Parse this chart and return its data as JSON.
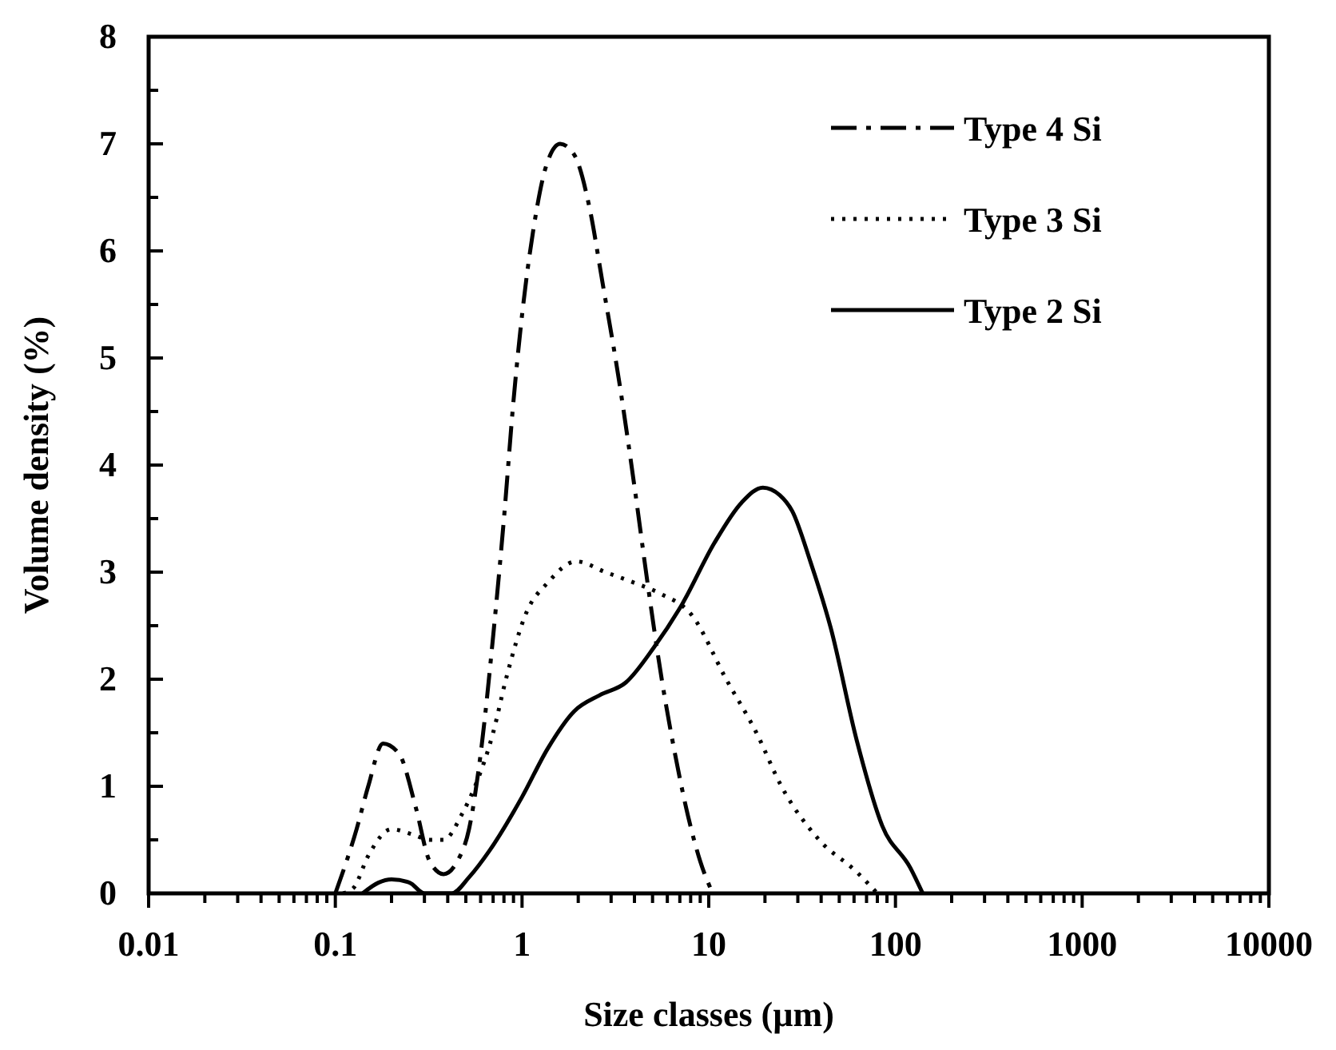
{
  "chart_data": {
    "type": "line",
    "xlabel": "Size classes (µm)",
    "ylabel": "Volume density (%)",
    "log": "x",
    "xlim": [
      0.01,
      10000
    ],
    "ylim": [
      0,
      8
    ],
    "xticks": [
      0.01,
      {
        "value": 0.02,
        "label": null
      },
      {
        "value": 0.03,
        "label": null
      },
      {
        "value": 0.04,
        "label": null
      },
      {
        "value": 0.05,
        "label": null
      },
      {
        "value": 0.06,
        "label": null
      },
      {
        "value": 0.07,
        "label": null
      },
      {
        "value": 0.08,
        "label": null
      },
      {
        "value": 0.09,
        "label": null
      },
      0.1,
      {
        "value": 0.2,
        "label": null
      },
      {
        "value": 0.3,
        "label": null
      },
      {
        "value": 0.4,
        "label": null
      },
      {
        "value": 0.5,
        "label": null
      },
      {
        "value": 0.6,
        "label": null
      },
      {
        "value": 0.7,
        "label": null
      },
      {
        "value": 0.8,
        "label": null
      },
      {
        "value": 0.9,
        "label": null
      },
      1,
      {
        "value": 2,
        "label": null
      },
      {
        "value": 3,
        "label": null
      },
      {
        "value": 4,
        "label": null
      },
      {
        "value": 5,
        "label": null
      },
      {
        "value": 6,
        "label": null
      },
      {
        "value": 7,
        "label": null
      },
      {
        "value": 8,
        "label": null
      },
      {
        "value": 9,
        "label": null
      },
      10,
      {
        "value": 20,
        "label": null
      },
      {
        "value": 30,
        "label": null
      },
      {
        "value": 40,
        "label": null
      },
      {
        "value": 50,
        "label": null
      },
      {
        "value": 60,
        "label": null
      },
      {
        "value": 70,
        "label": null
      },
      {
        "value": 80,
        "label": null
      },
      {
        "value": 90,
        "label": null
      },
      100,
      {
        "value": 200,
        "label": null
      },
      {
        "value": 300,
        "label": null
      },
      {
        "value": 400,
        "label": null
      },
      {
        "value": 500,
        "label": null
      },
      {
        "value": 600,
        "label": null
      },
      {
        "value": 700,
        "label": null
      },
      {
        "value": 800,
        "label": null
      },
      {
        "value": 900,
        "label": null
      },
      1000,
      {
        "value": 2000,
        "label": null
      },
      {
        "value": 3000,
        "label": null
      },
      {
        "value": 4000,
        "label": null
      },
      {
        "value": 5000,
        "label": null
      },
      {
        "value": 6000,
        "label": null
      },
      {
        "value": 7000,
        "label": null
      },
      {
        "value": 8000,
        "label": null
      },
      {
        "value": 9000,
        "label": null
      },
      10000
    ],
    "yticks": [
      0,
      {
        "value": 0.5,
        "label": null
      },
      1,
      {
        "value": 1.5,
        "label": null
      },
      2,
      {
        "value": 2.5,
        "label": null
      },
      3,
      {
        "value": 3.5,
        "label": null
      },
      4,
      {
        "value": 4.5,
        "label": null
      },
      5,
      {
        "value": 5.5,
        "label": null
      },
      6,
      {
        "value": 6.5,
        "label": null
      },
      7,
      {
        "value": 7.5,
        "label": null
      },
      8
    ],
    "legend": "top right",
    "grid": false,
    "series": [
      {
        "name": "Type 4 Si",
        "color": "#000000",
        "line_style": "dashdot",
        "x": [
          0.1,
          0.13,
          0.15,
          0.18,
          0.22,
          0.27,
          0.32,
          0.38,
          0.45,
          0.52,
          0.6,
          0.7,
          0.8,
          0.9,
          1.0,
          1.15,
          1.35,
          1.6,
          1.9,
          2.3,
          2.7,
          3.3,
          4.0,
          4.7,
          5.6,
          6.6,
          7.8,
          9,
          10.5
        ],
        "values": [
          0,
          0.6,
          1.0,
          1.4,
          1.3,
          0.8,
          0.3,
          0.18,
          0.3,
          0.6,
          1.3,
          2.4,
          3.5,
          4.6,
          5.4,
          6.2,
          6.8,
          7.0,
          6.9,
          6.4,
          5.7,
          4.8,
          3.8,
          2.9,
          2.0,
          1.3,
          0.7,
          0.3,
          0
        ]
      },
      {
        "name": "Type 3 Si",
        "color": "#000000",
        "line_style": "dotted",
        "x": [
          0.11,
          0.125,
          0.15,
          0.2,
          0.26,
          0.32,
          0.38,
          0.48,
          0.56,
          0.7,
          0.82,
          1.06,
          1.37,
          1.95,
          2.8,
          4,
          5.5,
          8.1,
          12.4,
          18,
          24.5,
          39,
          62,
          80
        ],
        "values": [
          0,
          0.05,
          0.35,
          0.6,
          0.55,
          0.5,
          0.5,
          0.75,
          1.0,
          1.5,
          2.0,
          2.63,
          2.9,
          3.1,
          3.0,
          2.9,
          2.8,
          2.6,
          2.0,
          1.5,
          1.0,
          0.5,
          0.2,
          0
        ]
      },
      {
        "name": "Type 2 Si",
        "color": "#000000",
        "line_style": "solid",
        "x": [
          0.14,
          0.17,
          0.2,
          0.25,
          0.3,
          0.42,
          0.52,
          0.67,
          1.0,
          1.37,
          1.9,
          2.6,
          3.6,
          5.1,
          7.2,
          10.7,
          15,
          19.5,
          24,
          28,
          35,
          45,
          62,
          85,
          120,
          140
        ],
        "values": [
          0,
          0.1,
          0.13,
          0.1,
          0,
          0,
          0.15,
          0.4,
          0.9,
          1.35,
          1.7,
          1.85,
          1.97,
          2.3,
          2.7,
          3.27,
          3.65,
          3.79,
          3.72,
          3.57,
          3.1,
          2.48,
          1.43,
          0.63,
          0.24,
          0
        ]
      }
    ]
  }
}
